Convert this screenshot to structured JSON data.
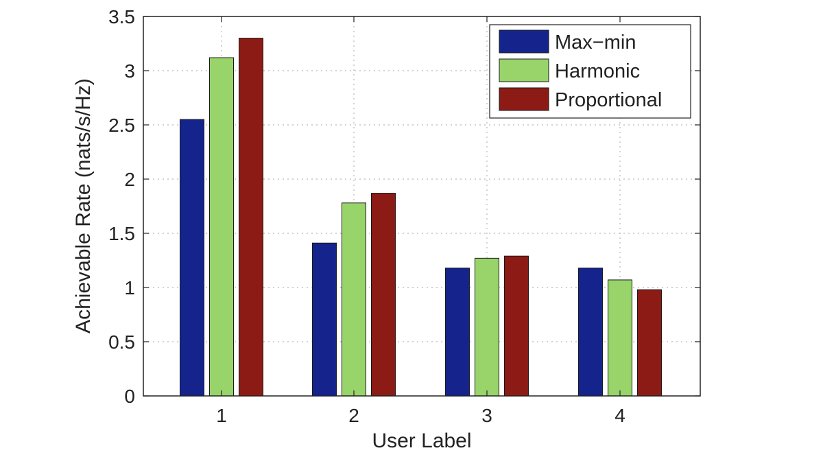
{
  "chart_data": {
    "type": "bar",
    "categories": [
      "1",
      "2",
      "3",
      "4"
    ],
    "series": [
      {
        "name": "Max−min",
        "color": "#14248c",
        "values": [
          2.55,
          1.41,
          1.18,
          1.18
        ]
      },
      {
        "name": "Harmonic",
        "color": "#98d46a",
        "values": [
          3.12,
          1.78,
          1.27,
          1.07
        ]
      },
      {
        "name": "Proportional",
        "color": "#8c1a15",
        "values": [
          3.3,
          1.87,
          1.29,
          0.98
        ]
      }
    ],
    "title": "",
    "xlabel": "User Label",
    "ylabel": "Achievable Rate (nats/s/Hz)",
    "ylim": [
      0,
      3.5
    ],
    "yticks": [
      0,
      0.5,
      1,
      1.5,
      2,
      2.5,
      3,
      3.5
    ],
    "ytick_labels": [
      "0",
      "0.5",
      "1",
      "1.5",
      "2",
      "2.5",
      "3",
      "3.5"
    ],
    "grid": true,
    "legend_position": "top-right"
  }
}
